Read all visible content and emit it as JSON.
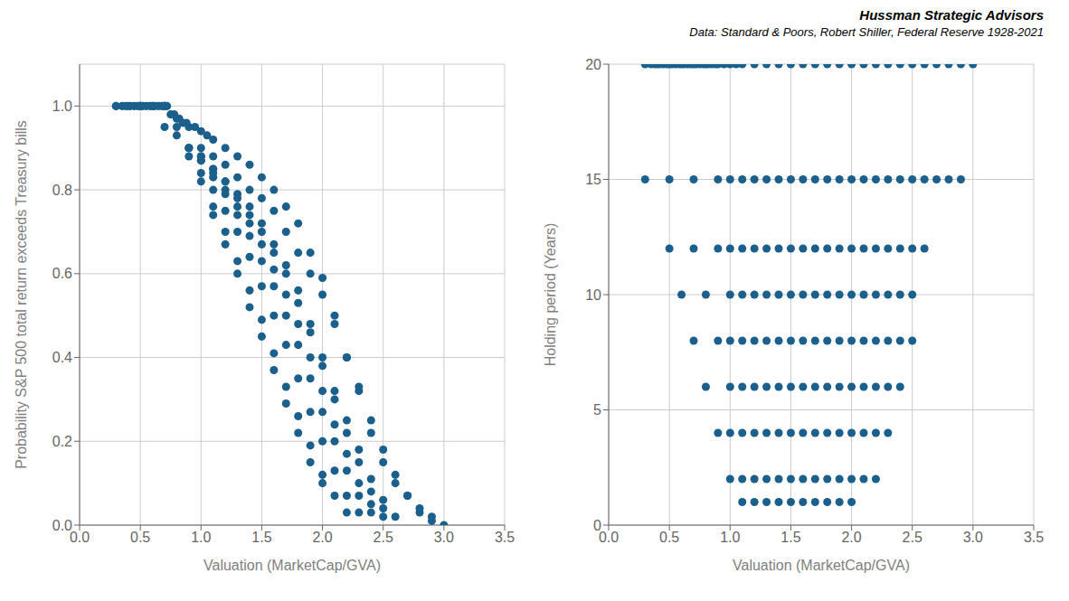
{
  "chart_data": {
    "type": "scatter3d",
    "title": "Hussman Strategic Advisors",
    "subtitle": "Data: Standard & Poors, Robert Shiller, Federal Reserve 1928-2021",
    "xlabel": "Valuation (MarketCap/GVA)",
    "ylabel": "Holding period (Years)",
    "zlabel": "Probability S&P 500 total return exceeds Treasury bills",
    "color": "#1b5f8c",
    "grid": true,
    "xlim": [
      0,
      3.5
    ],
    "ylim": [
      0,
      20
    ],
    "zlim": [
      0,
      1.1
    ],
    "xticks": [
      {
        "value": 0,
        "label": "0.0"
      },
      {
        "value": 0.5,
        "label": "0.5"
      },
      {
        "value": 1.0,
        "label": "1.0"
      },
      {
        "value": 1.5,
        "label": "1.5"
      },
      {
        "value": 2.0,
        "label": "2.0"
      },
      {
        "value": 2.5,
        "label": "2.5"
      },
      {
        "value": 3.0,
        "label": "3.0"
      },
      {
        "value": 3.5,
        "label": "3.5"
      }
    ],
    "yticks": [
      0,
      5,
      10,
      15,
      20
    ],
    "zticks": [
      {
        "value": 0,
        "label": "0.0"
      },
      {
        "value": 0.2,
        "label": "0.2"
      },
      {
        "value": 0.4,
        "label": "0.4"
      },
      {
        "value": 0.6,
        "label": "0.6"
      },
      {
        "value": 0.8,
        "label": "0.8"
      },
      {
        "value": 1.0,
        "label": "1.0"
      }
    ],
    "points": [
      [
        0.3,
        20,
        1.0
      ],
      [
        0.35,
        20,
        1.0
      ],
      [
        0.38,
        20,
        1.0
      ],
      [
        0.4,
        20,
        1.0
      ],
      [
        0.42,
        20,
        1.0
      ],
      [
        0.45,
        20,
        1.0
      ],
      [
        0.48,
        20,
        1.0
      ],
      [
        0.5,
        20,
        1.0
      ],
      [
        0.52,
        20,
        1.0
      ],
      [
        0.55,
        20,
        1.0
      ],
      [
        0.58,
        20,
        1.0
      ],
      [
        0.6,
        20,
        1.0
      ],
      [
        0.62,
        20,
        1.0
      ],
      [
        0.65,
        20,
        1.0
      ],
      [
        0.68,
        20,
        1.0
      ],
      [
        0.7,
        20,
        1.0
      ],
      [
        0.72,
        20,
        1.0
      ],
      [
        0.75,
        20,
        0.98
      ],
      [
        0.78,
        20,
        0.98
      ],
      [
        0.8,
        20,
        0.97
      ],
      [
        0.82,
        20,
        0.97
      ],
      [
        0.85,
        20,
        0.96
      ],
      [
        0.88,
        20,
        0.96
      ],
      [
        0.9,
        20,
        0.95
      ],
      [
        0.95,
        20,
        0.95
      ],
      [
        1.0,
        20,
        0.94
      ],
      [
        1.05,
        20,
        0.93
      ],
      [
        1.1,
        20,
        0.92
      ],
      [
        1.2,
        20,
        0.9
      ],
      [
        1.3,
        20,
        0.88
      ],
      [
        1.4,
        20,
        0.86
      ],
      [
        1.5,
        20,
        0.83
      ],
      [
        1.6,
        20,
        0.8
      ],
      [
        1.7,
        20,
        0.76
      ],
      [
        1.8,
        20,
        0.72
      ],
      [
        1.9,
        20,
        0.65
      ],
      [
        2.0,
        20,
        0.59
      ],
      [
        2.1,
        20,
        0.5
      ],
      [
        2.2,
        20,
        0.4
      ],
      [
        2.3,
        20,
        0.32
      ],
      [
        2.4,
        20,
        0.22
      ],
      [
        2.5,
        20,
        0.15
      ],
      [
        2.6,
        20,
        0.1
      ],
      [
        2.7,
        20,
        0.07
      ],
      [
        2.8,
        20,
        0.04
      ],
      [
        2.9,
        20,
        0.02
      ],
      [
        3.0,
        20,
        0.0
      ],
      [
        0.3,
        15,
        1.0
      ],
      [
        0.5,
        15,
        1.0
      ],
      [
        0.7,
        15,
        1.0
      ],
      [
        0.9,
        15,
        0.9
      ],
      [
        1.0,
        15,
        0.9
      ],
      [
        1.1,
        15,
        0.88
      ],
      [
        1.2,
        15,
        0.86
      ],
      [
        1.3,
        15,
        0.83
      ],
      [
        1.4,
        15,
        0.8
      ],
      [
        1.5,
        15,
        0.78
      ],
      [
        1.6,
        15,
        0.75
      ],
      [
        1.7,
        15,
        0.7
      ],
      [
        1.8,
        15,
        0.65
      ],
      [
        1.9,
        15,
        0.6
      ],
      [
        2.0,
        15,
        0.55
      ],
      [
        2.1,
        15,
        0.48
      ],
      [
        2.2,
        15,
        0.4
      ],
      [
        2.3,
        15,
        0.33
      ],
      [
        2.4,
        15,
        0.25
      ],
      [
        2.5,
        15,
        0.18
      ],
      [
        2.6,
        15,
        0.12
      ],
      [
        2.7,
        15,
        0.07
      ],
      [
        2.8,
        15,
        0.03
      ],
      [
        2.9,
        15,
        0.01
      ],
      [
        0.5,
        12,
        1.0
      ],
      [
        0.7,
        12,
        1.0
      ],
      [
        0.9,
        12,
        0.9
      ],
      [
        1.0,
        12,
        0.88
      ],
      [
        1.1,
        12,
        0.85
      ],
      [
        1.2,
        12,
        0.82
      ],
      [
        1.3,
        12,
        0.79
      ],
      [
        1.4,
        12,
        0.76
      ],
      [
        1.5,
        12,
        0.72
      ],
      [
        1.6,
        12,
        0.67
      ],
      [
        1.7,
        12,
        0.62
      ],
      [
        1.8,
        12,
        0.56
      ],
      [
        1.9,
        12,
        0.48
      ],
      [
        2.0,
        12,
        0.4
      ],
      [
        2.1,
        12,
        0.32
      ],
      [
        2.2,
        12,
        0.25
      ],
      [
        2.3,
        12,
        0.18
      ],
      [
        2.4,
        12,
        0.11
      ],
      [
        2.5,
        12,
        0.06
      ],
      [
        2.6,
        12,
        0.02
      ],
      [
        0.6,
        10,
        1.0
      ],
      [
        0.8,
        10,
        0.95
      ],
      [
        1.0,
        10,
        0.88
      ],
      [
        1.1,
        10,
        0.85
      ],
      [
        1.2,
        10,
        0.82
      ],
      [
        1.3,
        10,
        0.78
      ],
      [
        1.4,
        10,
        0.74
      ],
      [
        1.5,
        10,
        0.7
      ],
      [
        1.6,
        10,
        0.65
      ],
      [
        1.7,
        10,
        0.6
      ],
      [
        1.8,
        10,
        0.53
      ],
      [
        1.9,
        10,
        0.46
      ],
      [
        2.0,
        10,
        0.38
      ],
      [
        2.1,
        10,
        0.3
      ],
      [
        2.2,
        10,
        0.22
      ],
      [
        2.3,
        10,
        0.15
      ],
      [
        2.4,
        10,
        0.08
      ],
      [
        2.5,
        10,
        0.04
      ],
      [
        0.7,
        8,
        0.95
      ],
      [
        0.9,
        8,
        0.9
      ],
      [
        1.0,
        8,
        0.87
      ],
      [
        1.1,
        8,
        0.84
      ],
      [
        1.2,
        8,
        0.8
      ],
      [
        1.3,
        8,
        0.76
      ],
      [
        1.4,
        8,
        0.72
      ],
      [
        1.5,
        8,
        0.67
      ],
      [
        1.6,
        8,
        0.61
      ],
      [
        1.7,
        8,
        0.55
      ],
      [
        1.8,
        8,
        0.48
      ],
      [
        1.9,
        8,
        0.4
      ],
      [
        2.0,
        8,
        0.32
      ],
      [
        2.1,
        8,
        0.24
      ],
      [
        2.2,
        8,
        0.17
      ],
      [
        2.3,
        8,
        0.1
      ],
      [
        2.4,
        8,
        0.05
      ],
      [
        2.5,
        8,
        0.02
      ],
      [
        0.8,
        6,
        0.93
      ],
      [
        1.0,
        6,
        0.87
      ],
      [
        1.1,
        6,
        0.83
      ],
      [
        1.2,
        6,
        0.79
      ],
      [
        1.3,
        6,
        0.74
      ],
      [
        1.4,
        6,
        0.69
      ],
      [
        1.5,
        6,
        0.63
      ],
      [
        1.6,
        6,
        0.57
      ],
      [
        1.7,
        6,
        0.5
      ],
      [
        1.8,
        6,
        0.43
      ],
      [
        1.9,
        6,
        0.35
      ],
      [
        2.0,
        6,
        0.27
      ],
      [
        2.1,
        6,
        0.2
      ],
      [
        2.2,
        6,
        0.13
      ],
      [
        2.3,
        6,
        0.07
      ],
      [
        2.4,
        6,
        0.03
      ],
      [
        0.9,
        4,
        0.88
      ],
      [
        1.0,
        4,
        0.84
      ],
      [
        1.1,
        4,
        0.8
      ],
      [
        1.2,
        4,
        0.75
      ],
      [
        1.3,
        4,
        0.7
      ],
      [
        1.4,
        4,
        0.64
      ],
      [
        1.5,
        4,
        0.57
      ],
      [
        1.6,
        4,
        0.5
      ],
      [
        1.7,
        4,
        0.43
      ],
      [
        1.8,
        4,
        0.35
      ],
      [
        1.9,
        4,
        0.27
      ],
      [
        2.0,
        4,
        0.2
      ],
      [
        2.1,
        4,
        0.13
      ],
      [
        2.2,
        4,
        0.07
      ],
      [
        2.3,
        4,
        0.03
      ],
      [
        1.0,
        2,
        0.82
      ],
      [
        1.1,
        2,
        0.76
      ],
      [
        1.2,
        2,
        0.7
      ],
      [
        1.3,
        2,
        0.63
      ],
      [
        1.4,
        2,
        0.56
      ],
      [
        1.5,
        2,
        0.49
      ],
      [
        1.6,
        2,
        0.41
      ],
      [
        1.7,
        2,
        0.33
      ],
      [
        1.8,
        2,
        0.26
      ],
      [
        1.9,
        2,
        0.19
      ],
      [
        2.0,
        2,
        0.12
      ],
      [
        2.1,
        2,
        0.07
      ],
      [
        2.2,
        2,
        0.03
      ],
      [
        1.1,
        1,
        0.74
      ],
      [
        1.2,
        1,
        0.67
      ],
      [
        1.3,
        1,
        0.6
      ],
      [
        1.4,
        1,
        0.52
      ],
      [
        1.5,
        1,
        0.45
      ],
      [
        1.6,
        1,
        0.37
      ],
      [
        1.7,
        1,
        0.29
      ],
      [
        1.8,
        1,
        0.22
      ],
      [
        1.9,
        1,
        0.15
      ],
      [
        2.0,
        1,
        0.1
      ]
    ]
  }
}
